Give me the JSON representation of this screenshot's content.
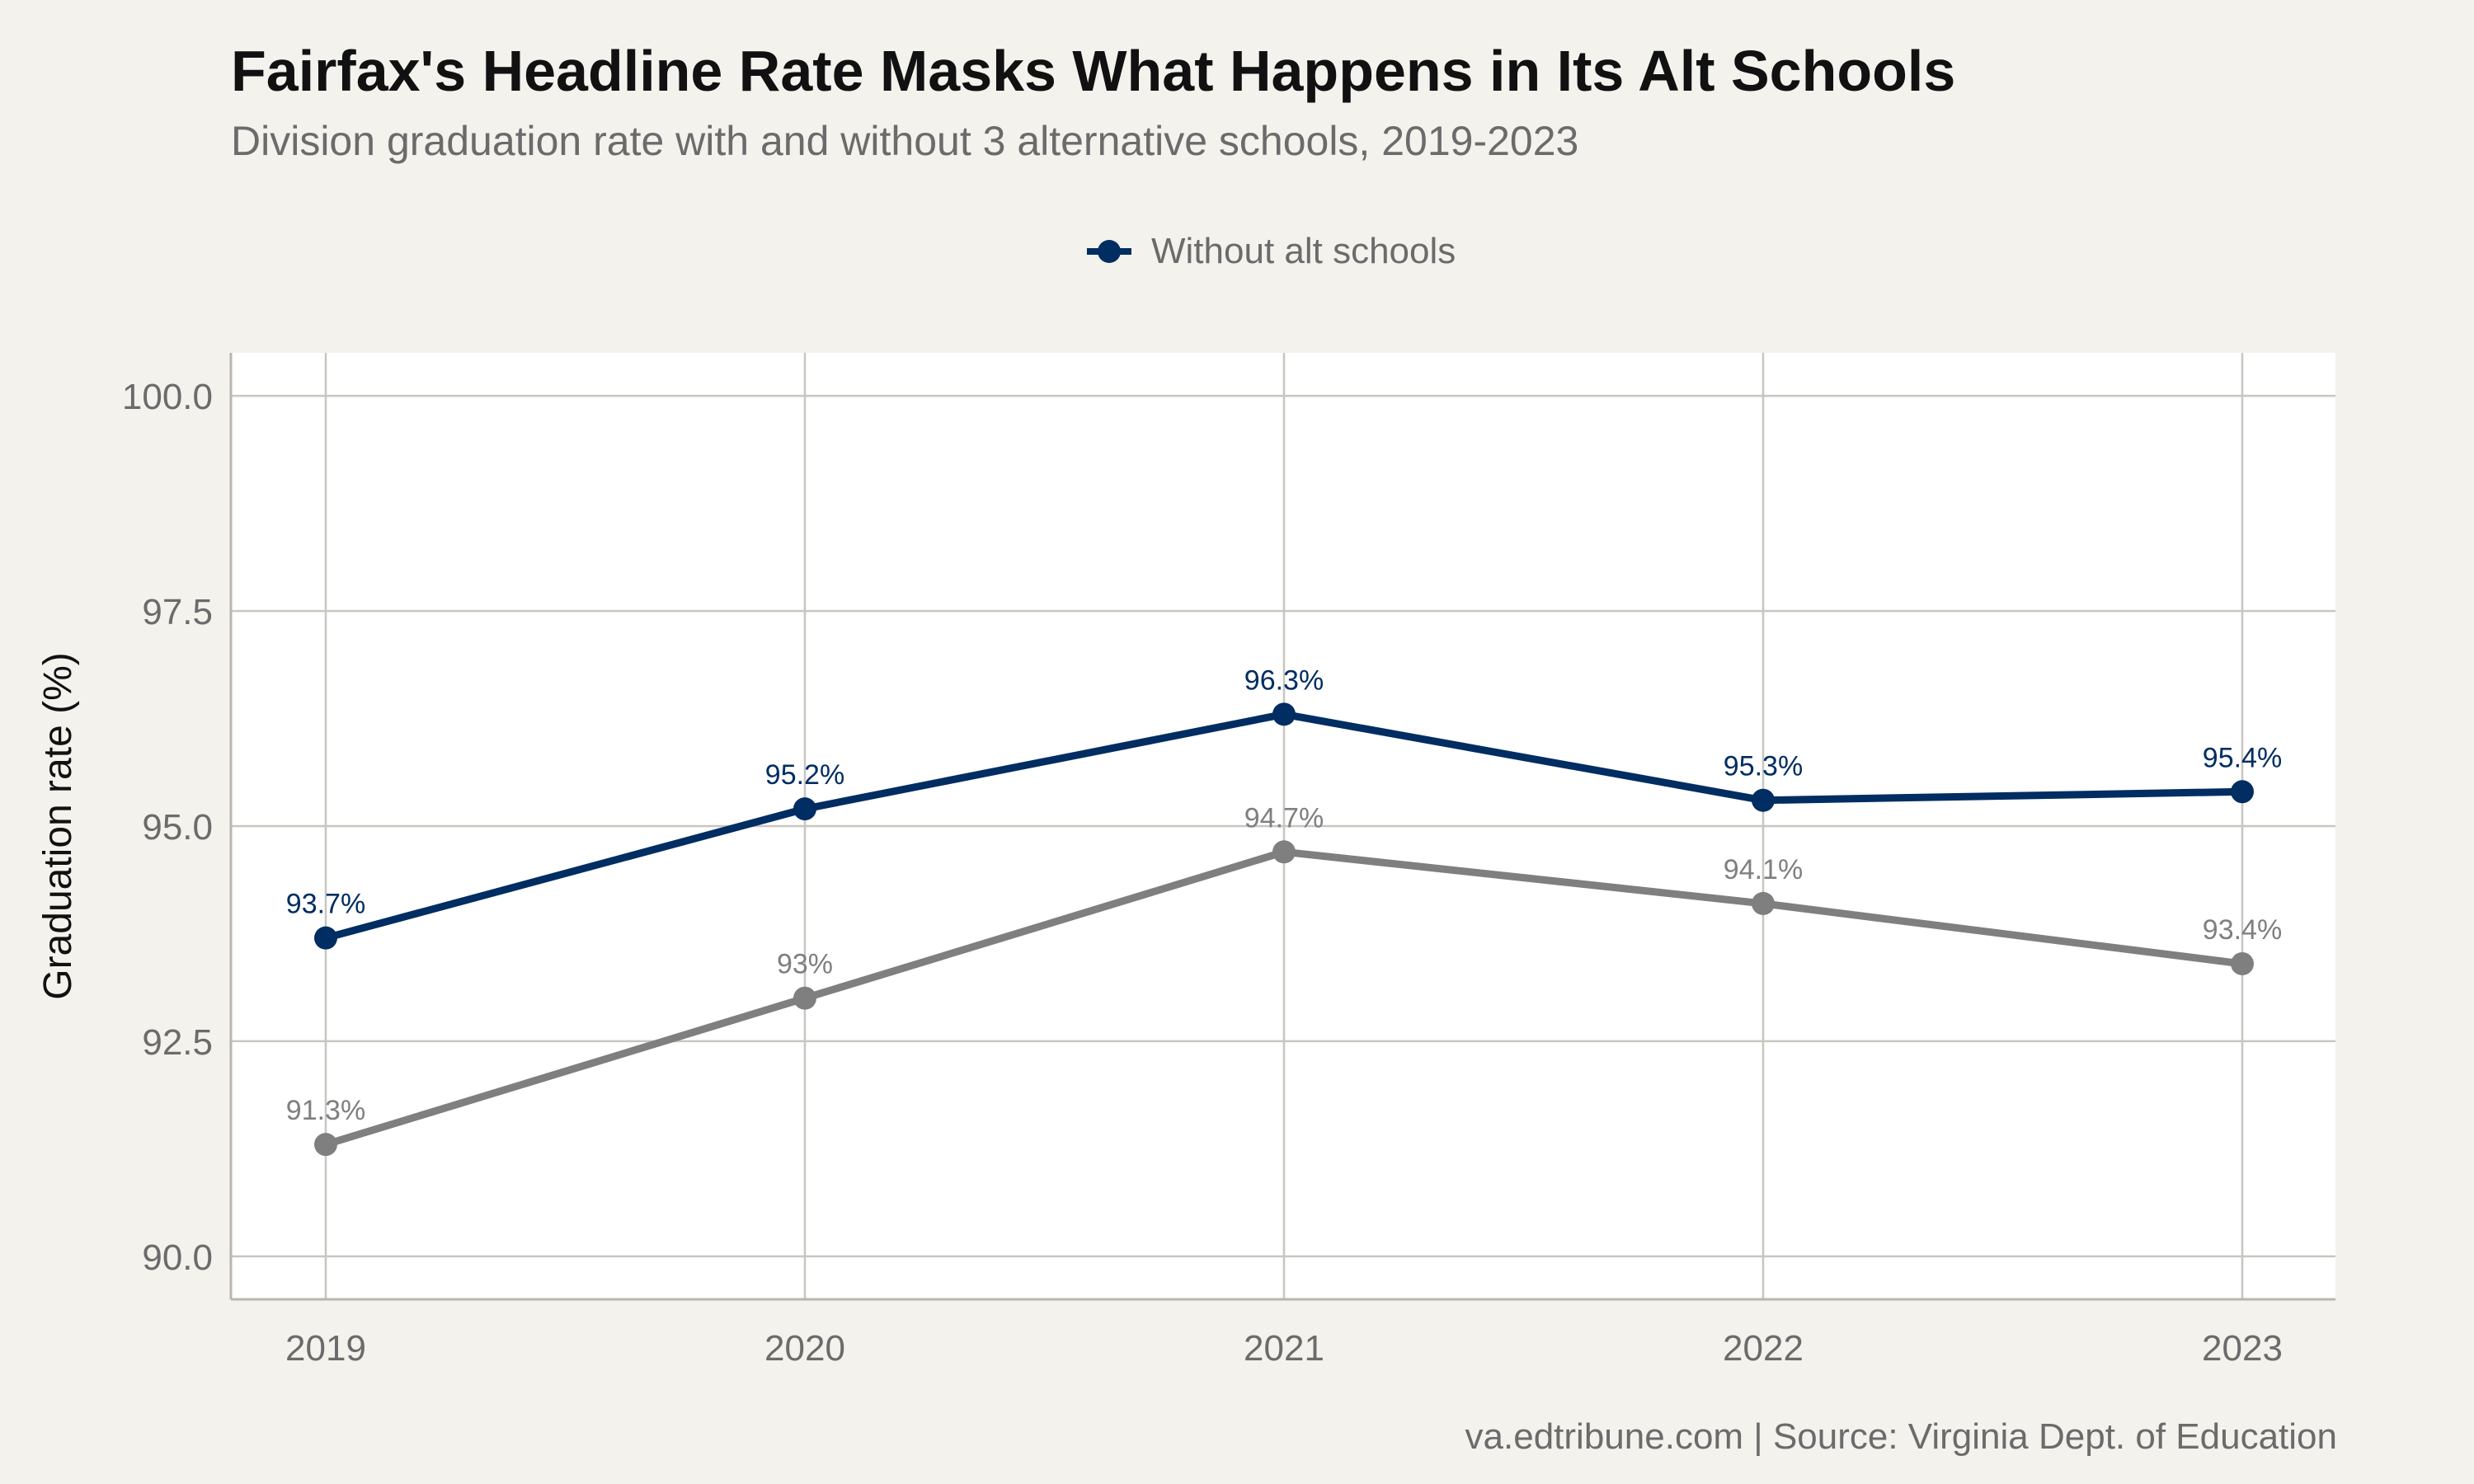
{
  "chart_data": {
    "type": "line",
    "title": "Fairfax's Headline Rate Masks What Happens in Its Alt Schools",
    "subtitle": "Division graduation rate with and without 3 alternative schools, 2019-2023",
    "xlabel": "",
    "ylabel": "Graduation rate (%)",
    "x": [
      "2019",
      "2020",
      "2021",
      "2022",
      "2023"
    ],
    "ylim": [
      89.5,
      100.5
    ],
    "yticks": [
      "90.0",
      "92.5",
      "95.0",
      "97.5",
      "100.0"
    ],
    "ytick_values": [
      90.0,
      92.5,
      95.0,
      97.5,
      100.0
    ],
    "grid": true,
    "legend_position": "top-center",
    "series": [
      {
        "name": "Without alt schools",
        "values": [
          93.7,
          95.2,
          96.3,
          95.3,
          95.4
        ],
        "labels": [
          "93.7%",
          "95.2%",
          "96.3%",
          "95.3%",
          "95.4%"
        ],
        "color": "#002d62",
        "in_legend": true
      },
      {
        "values": [
          91.3,
          93.0,
          94.7,
          94.1,
          93.4
        ],
        "labels": [
          "91.3%",
          "93%",
          "94.7%",
          "94.1%",
          "93.4%"
        ],
        "color": "#7f7f7f",
        "in_legend": false
      }
    ],
    "caption": "va.edtribune.com | Source: Virginia Dept. of Education"
  },
  "colors": {
    "background": "#f4f2ed",
    "panel": "#ffffff",
    "grid": "#c8c6bf",
    "accent": "#002d62",
    "muted": "#7f7f7f"
  }
}
